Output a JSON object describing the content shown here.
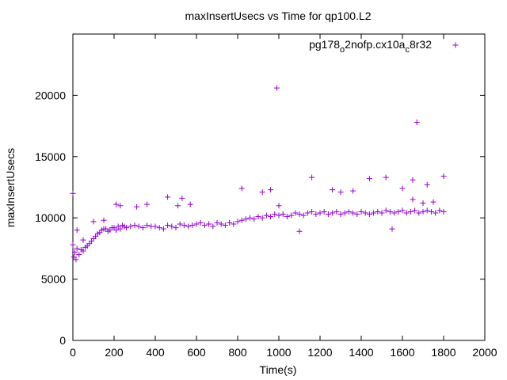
{
  "chart_data": {
    "type": "scatter",
    "title": "maxInsertUsecs vs Time for qp100.L2",
    "xlabel": "Time(s)",
    "ylabel": "maxInsertUsecs",
    "xlim": [
      0,
      2000
    ],
    "ylim": [
      0,
      25000
    ],
    "xticks": [
      "0",
      "200",
      "400",
      "600",
      "800",
      "1000",
      "1200",
      "1400",
      "1600",
      "1800",
      "2000"
    ],
    "yticks": [
      "0",
      "5000",
      "10000",
      "15000",
      "20000"
    ],
    "grid": false,
    "legend_position": "top-right",
    "series": [
      {
        "name": "pg178_o2nofp.cx10a_c8r32",
        "name_parts": {
          "a": "pg178",
          "b": "o",
          "c": "2nofp.cx10a",
          "d": "c",
          "e": "8r32"
        },
        "color": "#9400d3",
        "marker": "plus",
        "x": [
          0,
          5,
          10,
          15,
          20,
          30,
          40,
          50,
          60,
          70,
          80,
          90,
          100,
          110,
          120,
          130,
          140,
          150,
          160,
          170,
          180,
          190,
          200,
          210,
          220,
          230,
          240,
          250,
          260,
          280,
          300,
          320,
          340,
          360,
          380,
          400,
          420,
          440,
          460,
          480,
          500,
          520,
          540,
          560,
          580,
          600,
          620,
          640,
          660,
          680,
          700,
          720,
          740,
          760,
          780,
          800,
          820,
          840,
          860,
          880,
          900,
          920,
          940,
          960,
          980,
          1000,
          1020,
          1040,
          1060,
          1080,
          1100,
          1120,
          1140,
          1160,
          1180,
          1200,
          1220,
          1240,
          1260,
          1280,
          1300,
          1320,
          1340,
          1360,
          1380,
          1400,
          1420,
          1440,
          1460,
          1480,
          1500,
          1520,
          1540,
          1560,
          1580,
          1600,
          1620,
          1640,
          1660,
          1680,
          1700,
          1720,
          1740,
          1760,
          1780,
          1800,
          0,
          20,
          50,
          100,
          150,
          210,
          230,
          310,
          360,
          460,
          510,
          530,
          570,
          820,
          920,
          960,
          990,
          1160,
          1260,
          1300,
          1360,
          1440,
          1520,
          1600,
          1650,
          1670,
          1720,
          1800,
          1000,
          1100,
          1550,
          1650,
          1700,
          1750
        ],
        "y": [
          7800,
          6800,
          7200,
          6600,
          7500,
          7000,
          7400,
          7300,
          7600,
          7700,
          7900,
          8100,
          8300,
          8500,
          8700,
          8800,
          9000,
          9100,
          9100,
          8900,
          9000,
          9200,
          9200,
          9000,
          9300,
          9100,
          9400,
          9300,
          9200,
          9300,
          9400,
          9300,
          9200,
          9400,
          9300,
          9300,
          9200,
          9100,
          9400,
          9300,
          9200,
          9500,
          9400,
          9300,
          9400,
          9500,
          9600,
          9400,
          9500,
          9300,
          9600,
          9500,
          9400,
          9600,
          9500,
          9700,
          9800,
          9900,
          10000,
          9900,
          10100,
          10000,
          10200,
          10100,
          10300,
          10200,
          10300,
          10100,
          10200,
          10400,
          10300,
          10200,
          10400,
          10500,
          10300,
          10400,
          10500,
          10300,
          10400,
          10500,
          10300,
          10400,
          10500,
          10400,
          10300,
          10500,
          10400,
          10300,
          10400,
          10500,
          10400,
          10600,
          10500,
          10400,
          10500,
          10600,
          10400,
          10500,
          10600,
          10400,
          10500,
          10600,
          10500,
          10400,
          10600,
          10500,
          12000,
          9000,
          8200,
          9700,
          9800,
          11100,
          11000,
          10900,
          11100,
          11700,
          11000,
          11600,
          11100,
          12400,
          12100,
          12300,
          20600,
          13300,
          12300,
          12100,
          12200,
          13200,
          13300,
          12400,
          13100,
          17800,
          12700,
          13400,
          11000,
          8900,
          9100,
          11500,
          11200,
          11300
        ]
      }
    ]
  }
}
